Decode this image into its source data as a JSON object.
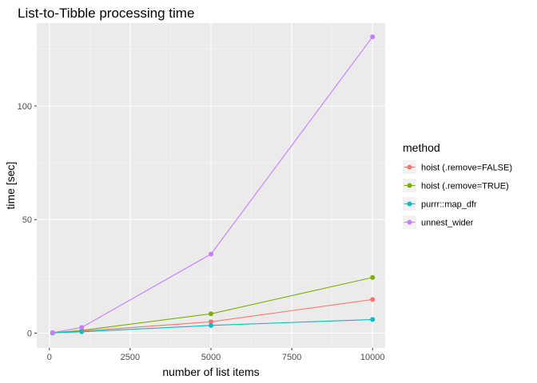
{
  "chart_data": {
    "type": "line",
    "title": "List-to-Tibble processing time",
    "xlabel": "number of list items",
    "ylabel": "time [sec]",
    "xlim": [
      -390,
      10390
    ],
    "ylim": [
      -6.5,
      136.5
    ],
    "xticks": [
      0,
      2500,
      5000,
      7500,
      10000
    ],
    "xtick_labels": [
      "0",
      "2500",
      "5000",
      "7500",
      "10000"
    ],
    "yticks": [
      0,
      50,
      100
    ],
    "ytick_labels": [
      "0",
      "50",
      "100"
    ],
    "grid": true,
    "legend": {
      "title": "method",
      "position": "right"
    },
    "x": [
      100,
      1000,
      5000,
      10000
    ],
    "series": [
      {
        "name": "hoist (.remove=FALSE)",
        "color": "#F8766D",
        "values": [
          0.1,
          0.9,
          5.0,
          14.8
        ]
      },
      {
        "name": "hoist (.remove=TRUE)",
        "color": "#7CAE00",
        "values": [
          0.1,
          1.2,
          8.5,
          24.5
        ]
      },
      {
        "name": "purrr::map_dfr",
        "color": "#00BFC4",
        "values": [
          0.1,
          0.6,
          3.4,
          6.0
        ]
      },
      {
        "name": "unnest_wider",
        "color": "#C77CFF",
        "values": [
          0.2,
          2.5,
          34.8,
          130.5
        ]
      }
    ]
  }
}
